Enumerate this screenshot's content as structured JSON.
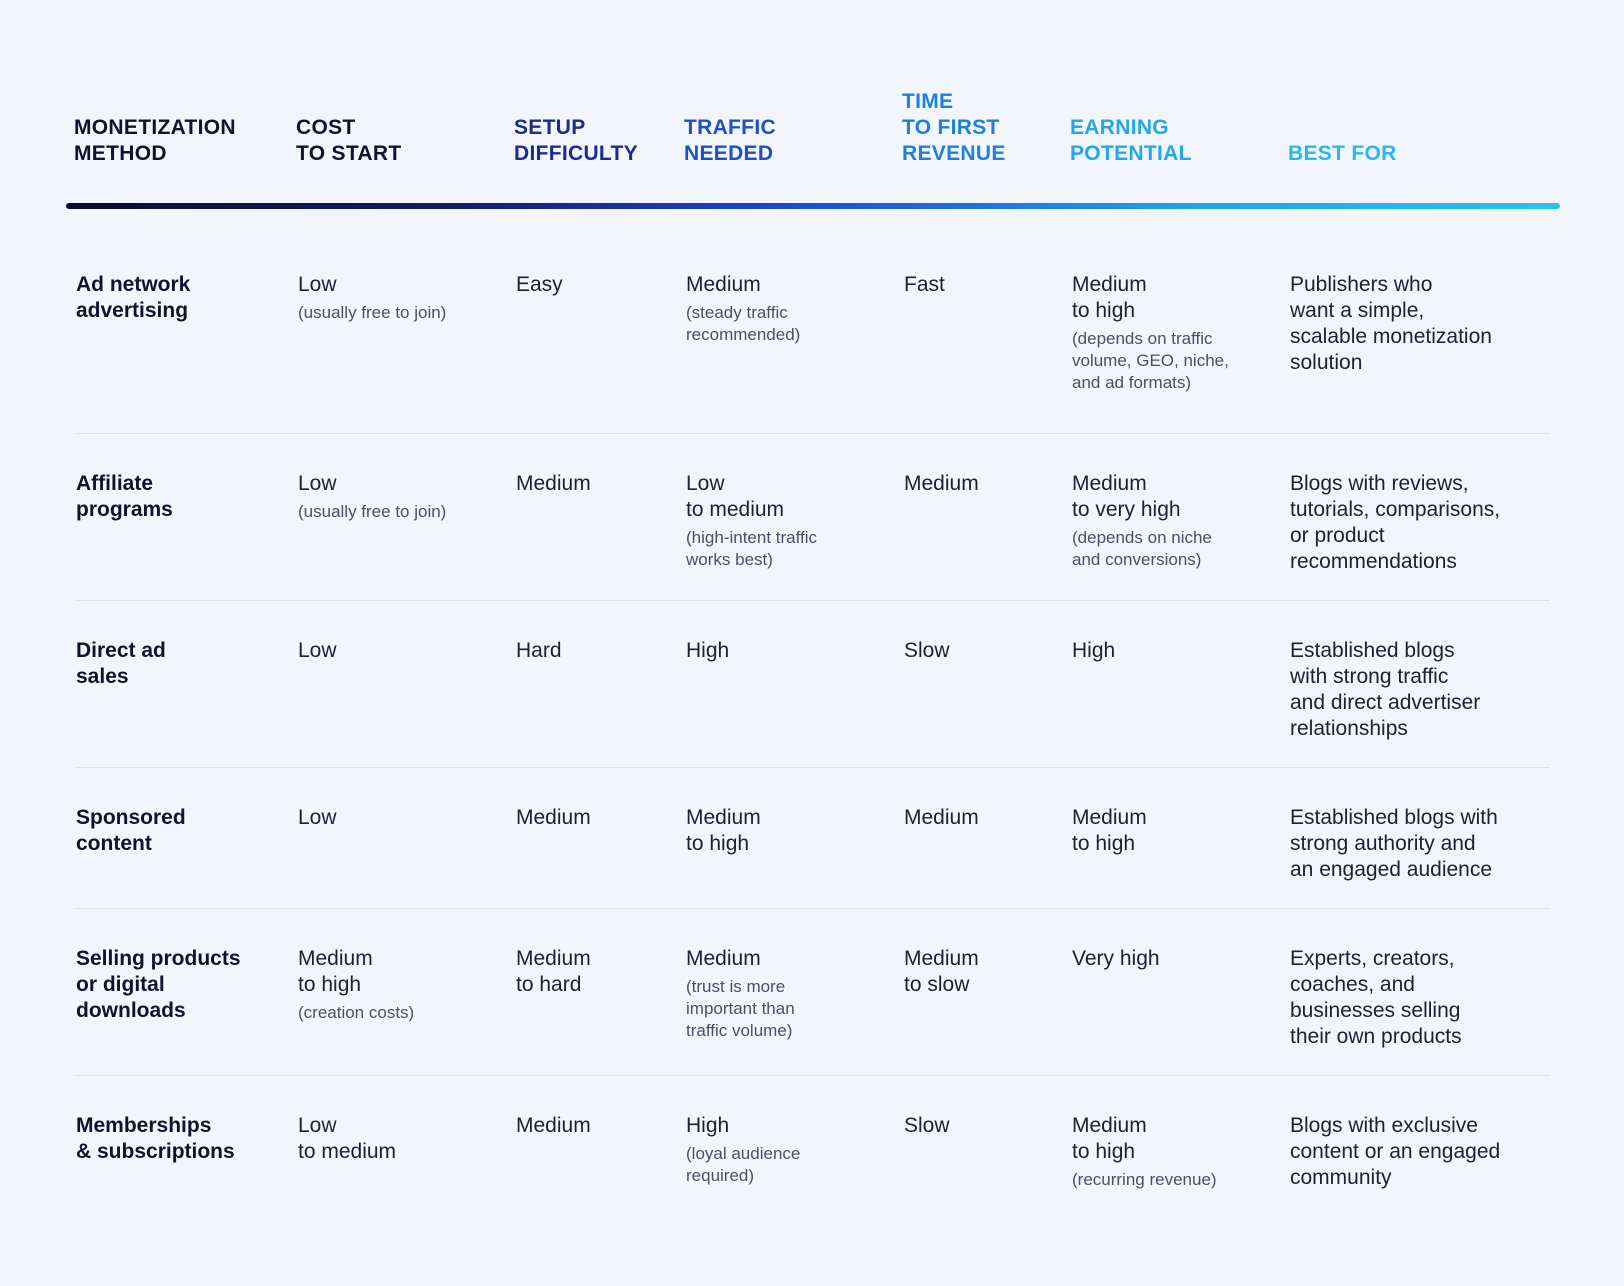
{
  "headers": [
    {
      "label": "MONETIZATION\nMETHOD",
      "color": "#0f1330"
    },
    {
      "label": "COST\nTO START",
      "color": "#0f1330"
    },
    {
      "label": "SETUP\nDIFFICULTY",
      "color": "#1a2c8f"
    },
    {
      "label": "TRAFFIC\nNEEDED",
      "color": "#1d4fc9"
    },
    {
      "label": "TIME\nTO FIRST\nREVENUE",
      "color": "#1f7fe0"
    },
    {
      "label": "EARNING\nPOTENTIAL",
      "color": "#23a6ea"
    },
    {
      "label": "BEST FOR",
      "color": "#2ab8ec"
    }
  ],
  "rows": [
    {
      "method": "Ad network\nadvertising",
      "cost": {
        "main": "Low",
        "note": "(usually free to join)"
      },
      "setup": {
        "main": "Easy",
        "note": ""
      },
      "traffic": {
        "main": "Medium",
        "note": "(steady traffic\nrecommended)"
      },
      "time": {
        "main": "Fast",
        "note": ""
      },
      "earning": {
        "main": "Medium\nto high",
        "note": "(depends on traffic\nvolume, GEO, niche,\nand ad formats)"
      },
      "best": "Publishers who\nwant a simple,\nscalable monetization\nsolution"
    },
    {
      "method": "Affiliate\nprograms",
      "cost": {
        "main": "Low",
        "note": "(usually free to join)"
      },
      "setup": {
        "main": "Medium",
        "note": ""
      },
      "traffic": {
        "main": "Low\nto medium",
        "note": "(high-intent traffic\nworks best)"
      },
      "time": {
        "main": "Medium",
        "note": ""
      },
      "earning": {
        "main": "Medium\nto very high",
        "note": "(depends on niche\nand conversions)"
      },
      "best": "Blogs with reviews,\ntutorials, comparisons,\nor product\nrecommendations"
    },
    {
      "method": "Direct ad\nsales",
      "cost": {
        "main": "Low",
        "note": ""
      },
      "setup": {
        "main": "Hard",
        "note": ""
      },
      "traffic": {
        "main": "High",
        "note": ""
      },
      "time": {
        "main": "Slow",
        "note": ""
      },
      "earning": {
        "main": "High",
        "note": ""
      },
      "best": "Established blogs\nwith strong traffic\nand direct advertiser\nrelationships"
    },
    {
      "method": "Sponsored\ncontent",
      "cost": {
        "main": "Low",
        "note": ""
      },
      "setup": {
        "main": "Medium",
        "note": ""
      },
      "traffic": {
        "main": "Medium\nto high",
        "note": ""
      },
      "time": {
        "main": "Medium",
        "note": ""
      },
      "earning": {
        "main": "Medium\nto high",
        "note": ""
      },
      "best": "Established blogs with\nstrong authority and\nan engaged audience"
    },
    {
      "method": "Selling products\nor digital\ndownloads",
      "cost": {
        "main": "Medium\nto high",
        "note": "(creation costs)"
      },
      "setup": {
        "main": "Medium\nto hard",
        "note": ""
      },
      "traffic": {
        "main": "Medium",
        "note": "(trust is more\nimportant than\ntraffic volume)"
      },
      "time": {
        "main": "Medium\nto slow",
        "note": ""
      },
      "earning": {
        "main": "Very high",
        "note": ""
      },
      "best": "Experts, creators,\ncoaches, and\nbusinesses selling\ntheir own products"
    },
    {
      "method": "Memberships\n& subscriptions",
      "cost": {
        "main": "Low\nto medium",
        "note": ""
      },
      "setup": {
        "main": "Medium",
        "note": ""
      },
      "traffic": {
        "main": "High",
        "note": "(loyal audience\nrequired)"
      },
      "time": {
        "main": "Slow",
        "note": ""
      },
      "earning": {
        "main": "Medium\nto high",
        "note": "(recurring revenue)"
      },
      "best": "Blogs with exclusive\ncontent or an engaged\ncommunity"
    }
  ]
}
